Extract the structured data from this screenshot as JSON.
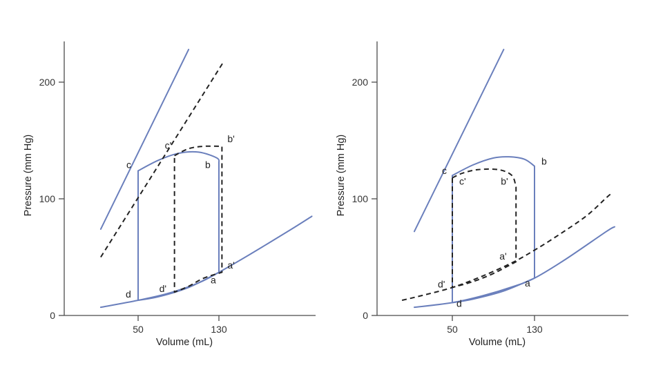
{
  "colors": {
    "solid": "#6a7fbc",
    "dashed": "#222222",
    "axis": "#4a4a4a"
  },
  "chart_data": [
    {
      "type": "line",
      "xlabel": "Volume (mL)",
      "ylabel": "Pressure (mm Hg)",
      "xticks": [
        50,
        130
      ],
      "yticks": [
        0,
        100,
        200
      ],
      "ylim": [
        0,
        235
      ],
      "series": [
        {
          "style": "solid",
          "values": [
            [
              50,
              124
            ],
            [
              70,
              133
            ],
            [
              90,
              139
            ],
            [
              110,
              140
            ],
            [
              128,
              135
            ],
            [
              130,
              131
            ],
            [
              130,
              37
            ],
            [
              100,
              24
            ],
            [
              70,
              16
            ],
            [
              50,
              13
            ],
            [
              50,
              124
            ]
          ]
        },
        {
          "style": "solid",
          "values": [
            [
              13,
              74
            ],
            [
              100,
              228
            ]
          ]
        },
        {
          "style": "solid",
          "values": [
            [
              13,
              7
            ],
            [
              50,
              13
            ],
            [
              80,
              19
            ],
            [
              110,
              28
            ],
            [
              130,
              37
            ],
            [
              160,
              52
            ],
            [
              200,
              73
            ],
            [
              222,
              85
            ]
          ]
        },
        {
          "style": "dashed",
          "values": [
            [
              13,
              50
            ],
            [
              135,
              218
            ]
          ]
        },
        {
          "style": "dashed",
          "values": [
            [
              86,
              137
            ],
            [
              100,
              143
            ],
            [
              115,
              145
            ],
            [
              133,
              145
            ],
            [
              133,
              37
            ],
            [
              115,
              32
            ],
            [
              100,
              25
            ],
            [
              86,
              20
            ],
            [
              86,
              137
            ]
          ]
        }
      ],
      "points": [
        {
          "label": "c",
          "x": 50,
          "y": 124
        },
        {
          "label": "c'",
          "x": 86,
          "y": 137
        },
        {
          "label": "b",
          "x": 130,
          "y": 131
        },
        {
          "label": "b'",
          "x": 133,
          "y": 145
        },
        {
          "label": "a'",
          "x": 133,
          "y": 45
        },
        {
          "label": "a",
          "x": 130,
          "y": 37
        },
        {
          "label": "d'",
          "x": 86,
          "y": 20
        },
        {
          "label": "d",
          "x": 50,
          "y": 13
        }
      ]
    },
    {
      "type": "line",
      "xlabel": "Volume (mL)",
      "ylabel": "Pressure (mm Hg)",
      "xticks": [
        50,
        130
      ],
      "yticks": [
        0,
        100,
        200
      ],
      "ylim": [
        0,
        235
      ],
      "series": [
        {
          "style": "solid",
          "values": [
            [
              50,
              120
            ],
            [
              70,
              129
            ],
            [
              90,
              135
            ],
            [
              105,
              136
            ],
            [
              120,
              134
            ],
            [
              130,
              128
            ],
            [
              130,
              32
            ],
            [
              100,
              21
            ],
            [
              70,
              14
            ],
            [
              50,
              11
            ],
            [
              50,
              120
            ]
          ]
        },
        {
          "style": "solid",
          "values": [
            [
              13,
              72
            ],
            [
              100,
              228
            ]
          ]
        },
        {
          "style": "solid",
          "values": [
            [
              13,
              7
            ],
            [
              50,
              11
            ],
            [
              80,
              17
            ],
            [
              110,
              25
            ],
            [
              130,
              32
            ],
            [
              160,
              48
            ],
            [
              200,
              72
            ],
            [
              208,
              76
            ]
          ]
        },
        {
          "style": "dashed",
          "values": [
            [
              1,
              13
            ],
            [
              20,
              17
            ],
            [
              50,
              24
            ],
            [
              80,
              34
            ],
            [
              110,
              46
            ],
            [
              130,
              56
            ],
            [
              150,
              67
            ],
            [
              180,
              85
            ],
            [
              200,
              101
            ],
            [
              204,
              104
            ]
          ]
        },
        {
          "style": "dashed",
          "values": [
            [
              50,
              118
            ],
            [
              60,
              122
            ],
            [
              75,
              125
            ],
            [
              95,
              125
            ],
            [
              108,
              120
            ],
            [
              112,
              110
            ],
            [
              112,
              46
            ],
            [
              90,
              36
            ],
            [
              70,
              29
            ],
            [
              50,
              24
            ],
            [
              50,
              118
            ]
          ]
        }
      ],
      "points": [
        {
          "label": "c",
          "x": 50,
          "y": 120
        },
        {
          "label": "c'",
          "x": 50,
          "y": 118
        },
        {
          "label": "b",
          "x": 130,
          "y": 128
        },
        {
          "label": "b'",
          "x": 112,
          "y": 118
        },
        {
          "label": "a'",
          "x": 112,
          "y": 48
        },
        {
          "label": "a",
          "x": 130,
          "y": 32
        },
        {
          "label": "d'",
          "x": 50,
          "y": 24
        },
        {
          "label": "d",
          "x": 50,
          "y": 11
        }
      ]
    }
  ]
}
